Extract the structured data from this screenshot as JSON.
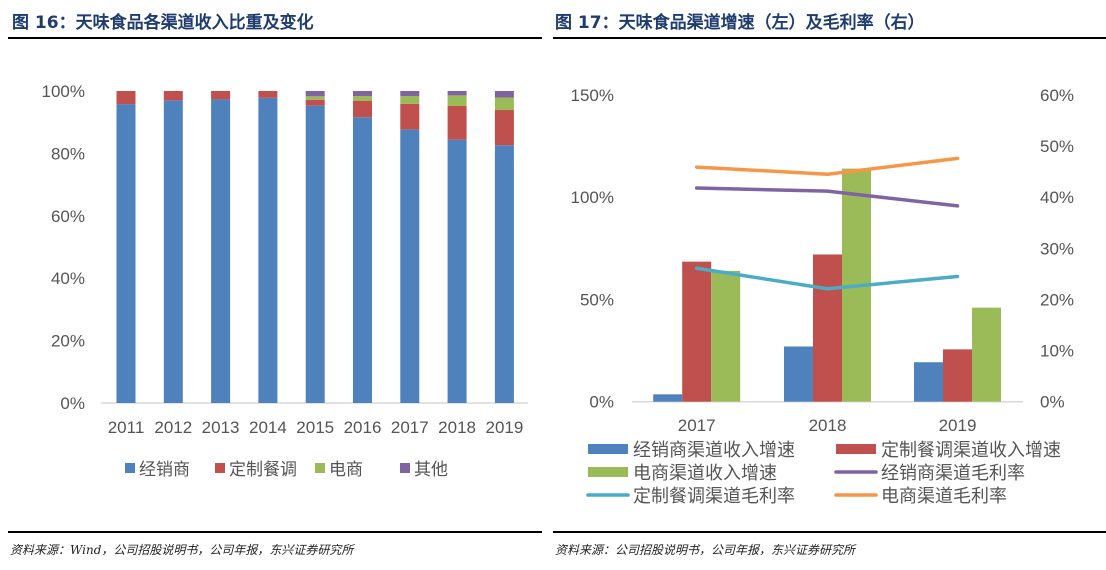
{
  "left_title": "图 16：天味食品各渠道收入比重及变化",
  "right_title": "图 17：天味食品渠道增速（左）及毛利率（右）",
  "left_source": "资料来源：Wind，公司招股说明书，公司年报，东兴证券研究所",
  "right_source": "资料来源：公司招股说明书，公司年报，东兴证券研究所",
  "chart_data": [
    {
      "type": "bar",
      "stacked": true,
      "title": "天味食品各渠道收入比重及变化",
      "categories": [
        "2011",
        "2012",
        "2013",
        "2014",
        "2015",
        "2016",
        "2017",
        "2018",
        "2019"
      ],
      "series": [
        {
          "name": "经销商",
          "color": "#4f81bd",
          "values": [
            95.8,
            97.0,
            97.3,
            97.8,
            95.3,
            91.6,
            87.7,
            84.4,
            82.6
          ]
        },
        {
          "name": "定制餐调",
          "color": "#c0504d",
          "values": [
            4.2,
            3.0,
            2.7,
            2.2,
            1.9,
            5.3,
            8.2,
            10.8,
            11.3
          ]
        },
        {
          "name": "电商",
          "color": "#9bbb59",
          "values": [
            0,
            0,
            0,
            0,
            1.1,
            1.5,
            2.5,
            3.4,
            4.0
          ]
        },
        {
          "name": "其他",
          "color": "#8064a2",
          "values": [
            0,
            0,
            0,
            0,
            1.7,
            1.6,
            1.6,
            1.4,
            2.1
          ]
        }
      ],
      "yticks": [
        "0%",
        "20%",
        "40%",
        "60%",
        "80%",
        "100%"
      ],
      "ylim": [
        0,
        100
      ],
      "legend": "bottom"
    },
    {
      "type": "bar+line",
      "title": "天味食品渠道增速（左）及毛利率（右）",
      "categories": [
        "2017",
        "2018",
        "2019"
      ],
      "bar_series": [
        {
          "name": "经销商渠道收入增速",
          "color": "#4f81bd",
          "values": [
            3.6,
            27,
            19.3
          ]
        },
        {
          "name": "定制餐调渠道收入增速",
          "color": "#c0504d",
          "values": [
            68.5,
            72,
            25.6
          ]
        },
        {
          "name": "电商渠道收入增速",
          "color": "#9bbb59",
          "values": [
            64,
            114,
            46
          ]
        }
      ],
      "line_series": [
        {
          "name": "经销商渠道毛利率",
          "color": "#8064a2",
          "values": [
            41.8,
            41.2,
            38.3
          ]
        },
        {
          "name": "定制餐调渠道毛利率",
          "color": "#4bacc6",
          "values": [
            26.1,
            22.1,
            24.5
          ]
        },
        {
          "name": "电商渠道毛利率",
          "color": "#f79646",
          "values": [
            45.9,
            44.5,
            47.6
          ]
        }
      ],
      "yticks_left": [
        "0%",
        "50%",
        "100%",
        "150%"
      ],
      "ylim_left": [
        0,
        150
      ],
      "yticks_right": [
        "0%",
        "10%",
        "20%",
        "30%",
        "40%",
        "50%",
        "60%"
      ],
      "ylim_right": [
        0,
        60
      ],
      "legend": "bottom"
    }
  ]
}
